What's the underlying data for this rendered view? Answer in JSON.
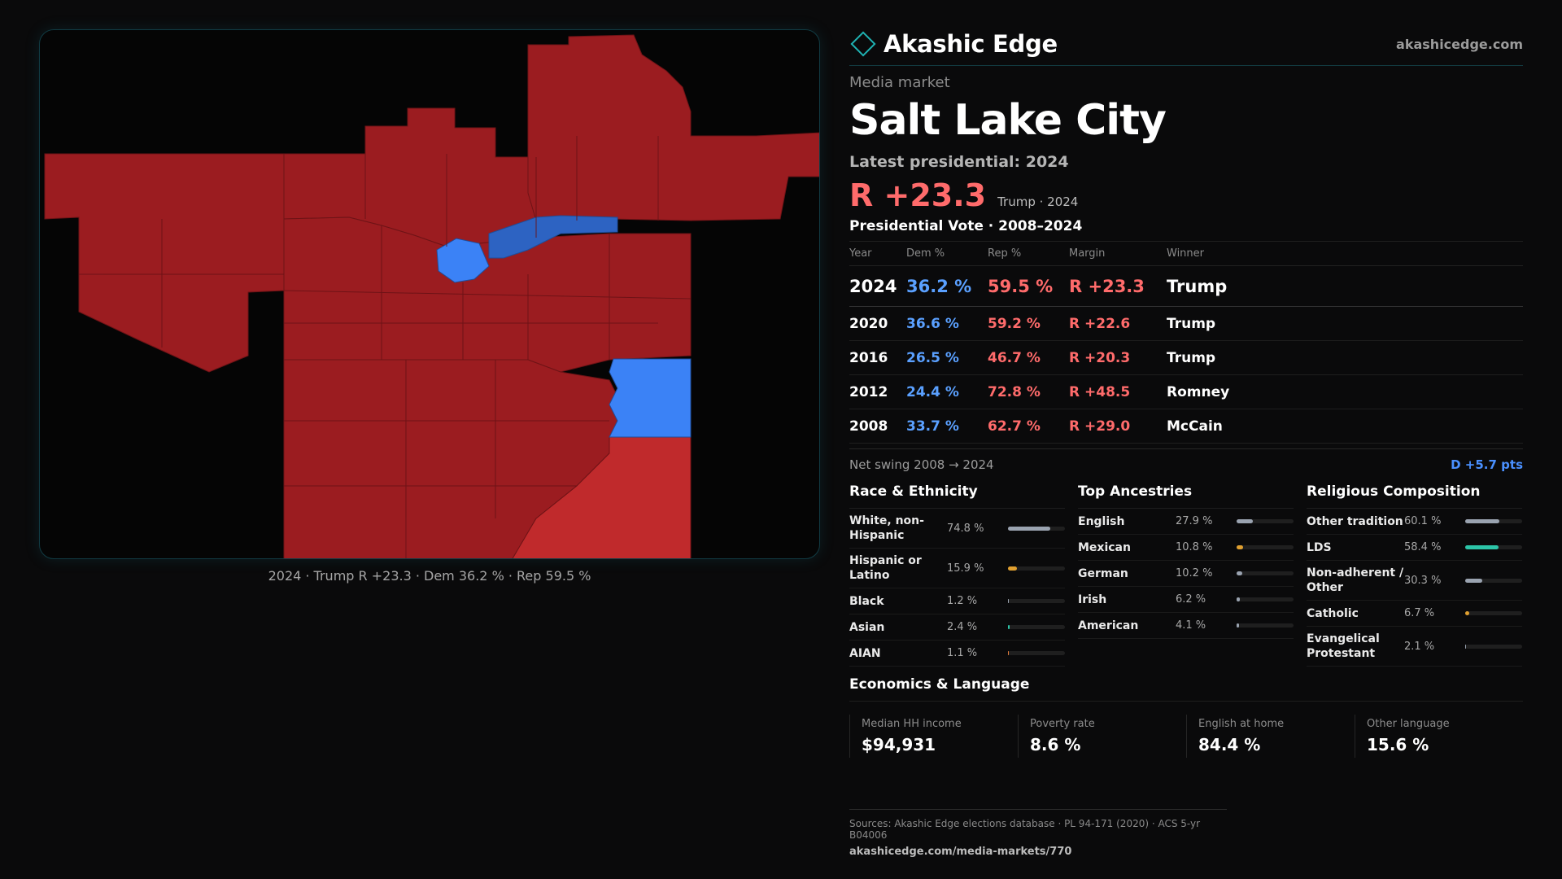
{
  "brand": {
    "name": "Akashic Edge",
    "site": "akashicedge.com"
  },
  "market": {
    "kicker": "Media market",
    "name": "Salt Lake City",
    "latest_label": "Latest presidential: 2024",
    "headline_margin": "R +23.3",
    "headline_sub": "Trump · 2024"
  },
  "map": {
    "caption": "2024 · Trump R +23.3 · Dem 36.2 % · Rep 59.5 %",
    "colors": {
      "rep_dark": "#9b1c20",
      "rep_light": "#c02a2c",
      "dem": "#3b82f6",
      "dem_dark": "#2d63c2",
      "border": "#6e1316"
    }
  },
  "votes": {
    "title": "Presidential Vote · 2008–2024",
    "headers": [
      "Year",
      "Dem %",
      "Rep %",
      "Margin",
      "Winner"
    ],
    "rows": [
      {
        "year": "2024",
        "dem": "36.2 %",
        "rep": "59.5 %",
        "margin": "R +23.3",
        "winner": "Trump"
      },
      {
        "year": "2020",
        "dem": "36.6 %",
        "rep": "59.2 %",
        "margin": "R +22.6",
        "winner": "Trump"
      },
      {
        "year": "2016",
        "dem": "26.5 %",
        "rep": "46.7 %",
        "margin": "R +20.3",
        "winner": "Trump"
      },
      {
        "year": "2012",
        "dem": "24.4 %",
        "rep": "72.8 %",
        "margin": "R +48.5",
        "winner": "Romney"
      },
      {
        "year": "2008",
        "dem": "33.7 %",
        "rep": "62.7 %",
        "margin": "R +29.0",
        "winner": "McCain"
      }
    ],
    "swing_label": "Net swing 2008 → 2024",
    "swing_value": "D +5.7 pts"
  },
  "race": {
    "title": "Race & Ethnicity",
    "items": [
      {
        "label": "White, non-Hispanic",
        "value": "74.8 %",
        "pct": 74.8,
        "color": "#9aa3b0"
      },
      {
        "label": "Hispanic or Latino",
        "value": "15.9 %",
        "pct": 15.9,
        "color": "#e0a030"
      },
      {
        "label": "Black",
        "value": "1.2 %",
        "pct": 1.2,
        "color": "#9aa3b0"
      },
      {
        "label": "Asian",
        "value": "2.4 %",
        "pct": 2.4,
        "color": "#2cc5a8"
      },
      {
        "label": "AIAN",
        "value": "1.1 %",
        "pct": 1.1,
        "color": "#e07a3a"
      }
    ]
  },
  "ancestry": {
    "title": "Top Ancestries",
    "items": [
      {
        "label": "English",
        "value": "27.9 %",
        "pct": 27.9,
        "color": "#9aa3b0"
      },
      {
        "label": "Mexican",
        "value": "10.8 %",
        "pct": 10.8,
        "color": "#e0a030"
      },
      {
        "label": "German",
        "value": "10.2 %",
        "pct": 10.2,
        "color": "#9aa3b0"
      },
      {
        "label": "Irish",
        "value": "6.2 %",
        "pct": 6.2,
        "color": "#9aa3b0"
      },
      {
        "label": "American",
        "value": "4.1 %",
        "pct": 4.1,
        "color": "#9aa3b0"
      }
    ]
  },
  "religion": {
    "title": "Religious Composition",
    "items": [
      {
        "label": "Other tradition",
        "value": "60.1 %",
        "pct": 60.1,
        "color": "#9aa3b0"
      },
      {
        "label": "LDS",
        "value": "58.4 %",
        "pct": 58.4,
        "color": "#2cc5a8"
      },
      {
        "label": "Non-adherent / Other",
        "value": "30.3 %",
        "pct": 30.3,
        "color": "#9aa3b0"
      },
      {
        "label": "Catholic",
        "value": "6.7 %",
        "pct": 6.7,
        "color": "#e0a030"
      },
      {
        "label": "Evangelical Protestant",
        "value": "2.1 %",
        "pct": 2.1,
        "color": "#9aa3b0"
      }
    ]
  },
  "economics": {
    "title": "Economics & Language",
    "items": [
      {
        "label": "Median HH income",
        "value": "$94,931"
      },
      {
        "label": "Poverty rate",
        "value": "8.6 %"
      },
      {
        "label": "English at home",
        "value": "84.4 %"
      },
      {
        "label": "Other language",
        "value": "15.6 %"
      }
    ]
  },
  "footer": {
    "sources": "Sources: Akashic Edge elections database · PL 94-171 (2020) · ACS 5-yr B04006",
    "url": "akashicedge.com/media-markets/770"
  }
}
